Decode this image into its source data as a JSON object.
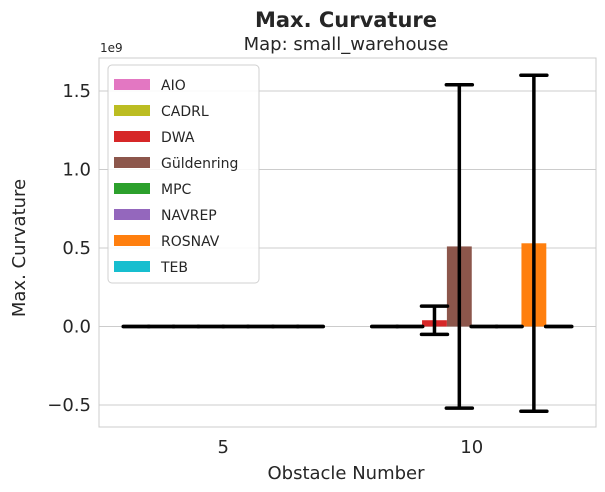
{
  "chart_data": {
    "type": "bar",
    "suptitle": "Max. Curvature",
    "title": "Map: small_warehouse",
    "xlabel": "Obstacle Number",
    "ylabel": "Max. Curvature",
    "y_offset_label": "1e9",
    "y_scale": 1000000000,
    "categories": [
      "5",
      "10"
    ],
    "ylim": [
      -0.64,
      1.71
    ],
    "yticks": [
      -0.5,
      0.0,
      0.5,
      1.0,
      1.5
    ],
    "ytick_labels": [
      "−0.5",
      "0.0",
      "0.5",
      "1.0",
      "1.5"
    ],
    "grid": true,
    "legend_position": "upper-left",
    "series": [
      {
        "name": "AIO",
        "color": "#e377c2",
        "values": [
          0,
          0
        ],
        "err": [
          0,
          0
        ]
      },
      {
        "name": "CADRL",
        "color": "#bcbd22",
        "values": [
          0,
          0
        ],
        "err": [
          0,
          0
        ]
      },
      {
        "name": "DWA",
        "color": "#d62728",
        "values": [
          0,
          0.04
        ],
        "err": [
          0,
          0.09
        ]
      },
      {
        "name": "Güldenring",
        "color": "#8c564b",
        "values": [
          0,
          0.51
        ],
        "err": [
          0,
          1.03
        ]
      },
      {
        "name": "MPC",
        "color": "#2ca02c",
        "values": [
          0,
          0
        ],
        "err": [
          0,
          0
        ]
      },
      {
        "name": "NAVREP",
        "color": "#9467bd",
        "values": [
          0,
          0
        ],
        "err": [
          0,
          0
        ]
      },
      {
        "name": "ROSNAV",
        "color": "#ff7f0e",
        "values": [
          0,
          0.53
        ],
        "err": [
          0,
          1.07
        ]
      },
      {
        "name": "TEB",
        "color": "#17becf",
        "values": [
          0,
          0
        ],
        "err": [
          0,
          0
        ]
      }
    ]
  }
}
